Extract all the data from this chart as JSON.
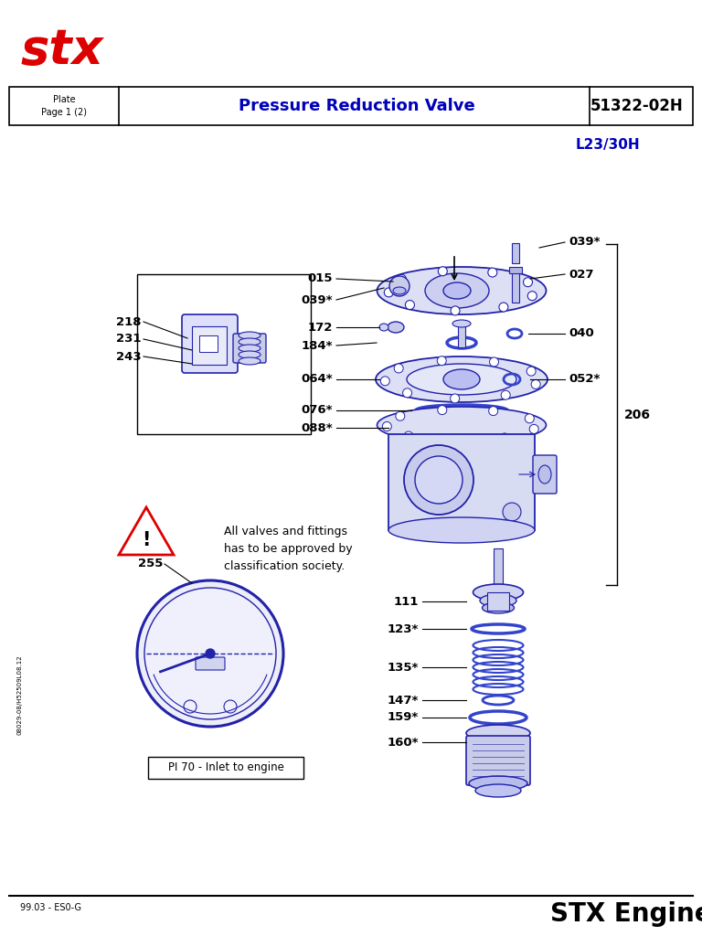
{
  "title_center": "Pressure Reduction Valve",
  "title_left": "Plate\nPage 1 (2)",
  "title_right": "51322-02H",
  "subtitle": "L23/30H",
  "footer_left": "99.03 - ES0-G",
  "footer_right": "STX Engine",
  "doc_id": "08029-08/H52509L08.12",
  "bg_color": "#ffffff",
  "blue": "#0000bb",
  "red": "#dd0000",
  "part_labels_left": [
    "218",
    "231",
    "243"
  ],
  "part_labels_mid": [
    "015",
    "039*",
    "172",
    "184*",
    "064*",
    "076*",
    "088*"
  ],
  "part_labels_right_top": [
    "039*",
    "027"
  ],
  "part_labels_right_mid": [
    "040",
    "052*"
  ],
  "part_labels_lower": [
    "111",
    "123*",
    "135*",
    "147*",
    "159*",
    "160*"
  ],
  "part_label_206": "206",
  "part_label_255": "255",
  "warning_text": "All valves and fittings\nhas to be approved by\nclassification society."
}
